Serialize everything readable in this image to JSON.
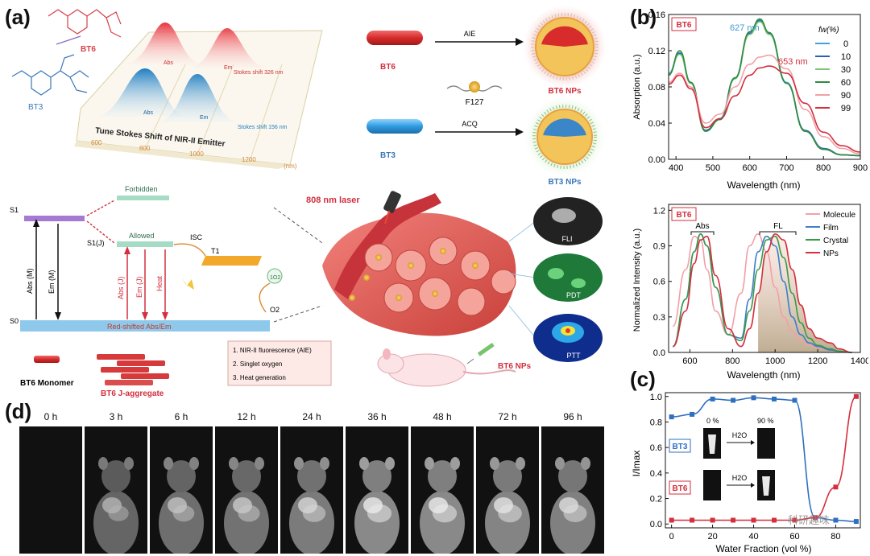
{
  "panels": {
    "a": "(a)",
    "b": "(b)",
    "c": "(c)",
    "d": "(d)"
  },
  "a": {
    "bt6": "BT6",
    "bt3": "BT3",
    "tune_title": "Tune Stokes Shift of NIR-II Emitter",
    "abs": "Abs",
    "em": "Em",
    "shift_bt6": "Stokes shift 326 nm",
    "shift_bt3": "Stokes shift 156 nm",
    "x_ticks": [
      "600",
      "800",
      "1000",
      "1200"
    ],
    "x_unit": "(nm)",
    "aie": "AIE",
    "acq": "ACQ",
    "f127": "F127",
    "bt6_nps": "BT6 NPs",
    "bt3_nps": "BT3 NPs",
    "s1": "S1",
    "s0": "S0",
    "s1j": "S1(J)",
    "t1": "T1",
    "forbidden": "Forbidden",
    "allowed": "Allowed",
    "isc": "ISC",
    "abs_m": "Abs (M)",
    "em_m": "Em (M)",
    "abs_j": "Abs (J)",
    "em_j": "Em (J)",
    "heat": "Heat",
    "red_shift": "Red-shifted Abs/Em",
    "o2": "O2",
    "singlet_o2": "1O2",
    "monomer": "BT6 Monomer",
    "jagg": "BT6 J-aggregate",
    "features": [
      "1. NIR-II fluorescence (AIE)",
      "2. Singlet oxygen",
      "3. Heat generation"
    ],
    "laser": "808 nm laser",
    "fli": "FLI",
    "pdt": "PDT",
    "ptt": "PTT"
  },
  "b_top": {
    "tag": "BT6",
    "ylabel": "Absorption (a.u.)",
    "xlabel": "Wavelength (nm)",
    "peak1": "627 nm",
    "peak2": "653 nm",
    "legend_title": "fw(%)",
    "xticks": [
      "400",
      "500",
      "600",
      "700",
      "800",
      "900"
    ],
    "yticks": [
      "0.00",
      "0.04",
      "0.08",
      "0.12",
      "0.16"
    ]
  },
  "b_bottom": {
    "tag": "BT6",
    "ylabel": "Normalized Intensity (a.u.)",
    "xlabel": "Wavelength (nm)",
    "abs": "Abs",
    "fl": "FL",
    "xticks": [
      "600",
      "800",
      "1000",
      "1200",
      "1400"
    ],
    "yticks": [
      "0.0",
      "0.3",
      "0.6",
      "0.9",
      "1.2"
    ]
  },
  "c": {
    "ylabel": "I/Imax",
    "xlabel": "Water Fraction (vol %)",
    "bt3": "BT3",
    "bt6": "BT6",
    "pct0": "0 %",
    "pct90": "90 %",
    "h2o": "H2O",
    "xticks": [
      "0",
      "20",
      "40",
      "60",
      "80"
    ],
    "yticks": [
      "0.0",
      "0.2",
      "0.4",
      "0.6",
      "0.8",
      "1.0"
    ]
  },
  "d": {
    "times": [
      "0 h",
      "3 h",
      "6 h",
      "12 h",
      "24 h",
      "36 h",
      "48 h",
      "72 h",
      "96 h"
    ]
  },
  "watermark": "科研趣味",
  "chart_data": [
    {
      "type": "line",
      "title": "",
      "xlabel": "Wavelength (nm)",
      "ylabel": "Absorption (a.u.)",
      "xlim": [
        380,
        900
      ],
      "ylim": [
        0,
        0.16
      ],
      "legend_title": "fw(%)",
      "legend_position": "right",
      "x": [
        380,
        410,
        440,
        480,
        520,
        560,
        600,
        627,
        653,
        700,
        750,
        800,
        850,
        900
      ],
      "series": [
        {
          "name": "0",
          "color": "#3fa3d8",
          "values": [
            0.095,
            0.118,
            0.085,
            0.032,
            0.045,
            0.09,
            0.14,
            0.154,
            0.14,
            0.085,
            0.032,
            0.012,
            0.005,
            0.004
          ]
        },
        {
          "name": "10",
          "color": "#2f5fb3",
          "values": [
            0.094,
            0.117,
            0.084,
            0.032,
            0.045,
            0.09,
            0.139,
            0.153,
            0.139,
            0.084,
            0.032,
            0.012,
            0.005,
            0.004
          ]
        },
        {
          "name": "30",
          "color": "#7cc47a",
          "values": [
            0.094,
            0.116,
            0.084,
            0.031,
            0.044,
            0.089,
            0.138,
            0.152,
            0.138,
            0.084,
            0.031,
            0.011,
            0.005,
            0.004
          ]
        },
        {
          "name": "60",
          "color": "#2e8b3e",
          "values": [
            0.093,
            0.12,
            0.085,
            0.031,
            0.044,
            0.09,
            0.141,
            0.155,
            0.14,
            0.084,
            0.031,
            0.011,
            0.005,
            0.004
          ]
        },
        {
          "name": "90",
          "color": "#f2a0a8",
          "values": [
            0.085,
            0.095,
            0.08,
            0.04,
            0.05,
            0.08,
            0.105,
            0.113,
            0.115,
            0.1,
            0.055,
            0.025,
            0.012,
            0.006
          ]
        },
        {
          "name": "99",
          "color": "#d32f3e",
          "values": [
            0.083,
            0.093,
            0.078,
            0.035,
            0.045,
            0.07,
            0.093,
            0.101,
            0.103,
            0.095,
            0.062,
            0.03,
            0.015,
            0.008
          ]
        }
      ]
    },
    {
      "type": "line",
      "title": "",
      "xlabel": "Wavelength (nm)",
      "ylabel": "Normalized Intensity (a.u.)",
      "xlim": [
        500,
        1400
      ],
      "ylim": [
        0,
        1.25
      ],
      "legend_position": "top-right",
      "x": [
        520,
        580,
        620,
        650,
        680,
        720,
        780,
        840,
        880,
        920,
        960,
        1000,
        1040,
        1080,
        1120,
        1160,
        1200,
        1260,
        1300,
        1360
      ],
      "series": [
        {
          "name": "Molecule",
          "color": "#f2a0a8",
          "values": [
            0.22,
            0.7,
            0.98,
            0.95,
            0.7,
            0.35,
            0.15,
            0.5,
            0.9,
            1.0,
            0.85,
            0.55,
            0.3,
            0.18,
            0.1,
            0.06,
            0.04,
            0.02,
            0.01,
            0.0
          ]
        },
        {
          "name": "Film",
          "color": "#3f7fc8",
          "values": [
            0.05,
            0.45,
            0.85,
            1.0,
            0.9,
            0.55,
            0.15,
            0.12,
            0.45,
            0.85,
            0.98,
            0.9,
            0.6,
            0.3,
            0.15,
            0.08,
            0.05,
            0.02,
            0.01,
            0.0
          ]
        },
        {
          "name": "Crystal",
          "color": "#3a9a4a",
          "values": [
            0.05,
            0.45,
            0.85,
            1.0,
            0.9,
            0.55,
            0.15,
            0.1,
            0.35,
            0.7,
            0.95,
            0.98,
            0.8,
            0.5,
            0.25,
            0.12,
            0.06,
            0.03,
            0.01,
            0.0
          ]
        },
        {
          "name": "NPs",
          "color": "#d32f3e",
          "values": [
            0.05,
            0.35,
            0.75,
            0.95,
            0.98,
            0.65,
            0.2,
            0.05,
            0.2,
            0.5,
            0.85,
            1.0,
            0.95,
            0.7,
            0.4,
            0.2,
            0.12,
            0.08,
            0.03,
            0.0
          ]
        }
      ]
    },
    {
      "type": "scatter",
      "title": "",
      "xlabel": "Water Fraction (vol %)",
      "ylabel": "I/Imax",
      "xlim": [
        -3,
        92
      ],
      "ylim": [
        -0.03,
        1.03
      ],
      "series": [
        {
          "name": "BT3",
          "color": "#2f6fc0",
          "x": [
            0,
            10,
            20,
            30,
            40,
            50,
            60,
            70,
            80,
            90
          ],
          "values": [
            0.84,
            0.86,
            0.98,
            0.97,
            0.99,
            0.98,
            0.97,
            0.05,
            0.03,
            0.02
          ]
        },
        {
          "name": "BT6",
          "color": "#d32f3e",
          "x": [
            0,
            10,
            20,
            30,
            40,
            50,
            60,
            70,
            80,
            90
          ],
          "values": [
            0.03,
            0.03,
            0.03,
            0.03,
            0.03,
            0.03,
            0.03,
            0.05,
            0.29,
            1.0
          ]
        }
      ]
    }
  ]
}
